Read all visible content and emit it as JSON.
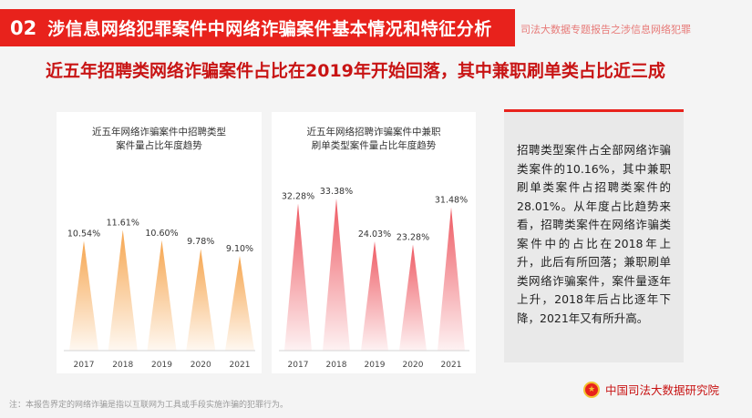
{
  "header": {
    "number": "02",
    "title": "涉信息网络犯罪案件中网络诈骗案件基本情况和特征分析",
    "subtitle": "司法大数据专题报告之涉信息网络犯罪"
  },
  "headline": "近五年招聘类网络诈骗案件占比在2019年开始回落，其中兼职刷单类占比近三成",
  "colors": {
    "accent": "#e8221c",
    "chart1_fill": "#f6a650",
    "chart2_fill": "#ee5a63"
  },
  "chart_data": [
    {
      "type": "area",
      "title_lines": [
        "近五年网络诈骗案件中招聘类型",
        "案件量占比年度趋势"
      ],
      "categories": [
        "2017",
        "2018",
        "2019",
        "2020",
        "2021"
      ],
      "values": [
        10.54,
        11.61,
        10.6,
        9.78,
        9.1
      ],
      "labels": [
        "10.54%",
        "11.61%",
        "10.60%",
        "9.78%",
        "9.10%"
      ],
      "ylim": [
        0,
        14
      ],
      "grid": false
    },
    {
      "type": "area",
      "title_lines": [
        "近五年网络招聘诈骗案件中兼职",
        "刷单类型案件量占比年度趋势"
      ],
      "categories": [
        "2017",
        "2018",
        "2019",
        "2020",
        "2021"
      ],
      "values": [
        32.28,
        33.38,
        24.03,
        23.28,
        31.48
      ],
      "labels": [
        "32.28%",
        "33.38%",
        "24.03%",
        "23.28%",
        "31.48%"
      ],
      "ylim": [
        0,
        40
      ],
      "grid": false
    }
  ],
  "sidebar_text": "招聘类型案件占全部网络诈骗类案件的10.16%，其中兼职刷单类案件占招聘类案件的28.01%。从年度占比趋势来看，招聘类案件在网络诈骗类案件中的占比在2018年上升，此后有所回落；兼职刷单类网络诈骗案件，案件量逐年上升，2018年后占比逐年下降，2021年又有所升高。",
  "footnote": "注：本报告界定的网络诈骗是指以互联网为工具或手段实施诈骗的犯罪行为。",
  "logo_text": "中国司法大数据研究院"
}
